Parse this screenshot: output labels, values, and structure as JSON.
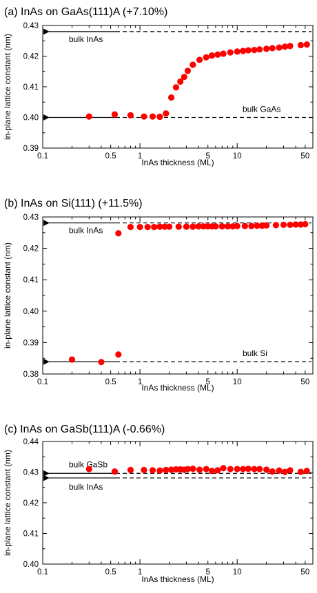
{
  "chart_data": [
    {
      "type": "scatter",
      "title": "(a) InAs on GaAs(111)A (+7.10%)",
      "xlabel": "InAs thickness (ML)",
      "ylabel": "in-plane lattice constant (nm)",
      "x_scale": "log",
      "xlim": [
        0.1,
        60
      ],
      "ylim": [
        0.39,
        0.43
      ],
      "xticks": [
        "0.1",
        "0.5",
        "1",
        "5",
        "10",
        "50"
      ],
      "yticks": [
        "0.39",
        "0.40",
        "0.41",
        "0.42",
        "0.43"
      ],
      "marker_color": "#ff0000",
      "series": [
        {
          "x": [
            0.3,
            0.55,
            0.8,
            1.1,
            1.35,
            1.6,
            1.85,
            2.1,
            2.35,
            2.6,
            2.85,
            3.1,
            3.5,
            4.1,
            4.8,
            5.5,
            6.3,
            7.2,
            8.5,
            10,
            11.5,
            13,
            15,
            17,
            20,
            23,
            27,
            31,
            35,
            45,
            52
          ],
          "y": [
            0.4003,
            0.401,
            0.4007,
            0.4003,
            0.4003,
            0.4002,
            0.4013,
            0.4065,
            0.4098,
            0.4117,
            0.4132,
            0.4152,
            0.4172,
            0.4188,
            0.4196,
            0.4202,
            0.4205,
            0.4208,
            0.4212,
            0.4215,
            0.4217,
            0.4219,
            0.422,
            0.4222,
            0.4224,
            0.4226,
            0.4228,
            0.4231,
            0.4233,
            0.4236,
            0.4238
          ]
        }
      ],
      "reference_lines": [
        {
          "label": "bulk InAs",
          "y": 0.428
        },
        {
          "label": "bulk GaAs",
          "y": 0.4
        }
      ],
      "grid": false
    },
    {
      "type": "scatter",
      "title": "(b) InAs on Si(111) (+11.5%)",
      "xlabel": "InAs thickness (ML)",
      "ylabel": "in-plane lattice constant (nm)",
      "x_scale": "log",
      "xlim": [
        0.1,
        60
      ],
      "ylim": [
        0.38,
        0.43
      ],
      "xticks": [
        "0.1",
        "0.5",
        "1",
        "5",
        "10",
        "50"
      ],
      "yticks": [
        "0.38",
        "0.39",
        "0.40",
        "0.41",
        "0.42",
        "0.43"
      ],
      "marker_color": "#ff0000",
      "series": [
        {
          "x": [
            0.2,
            0.4,
            0.6,
            0.6,
            0.8,
            1.0,
            1.2,
            1.4,
            1.6,
            1.8,
            2.0,
            2.5,
            3.0,
            3.5,
            4.0,
            4.5,
            5.0,
            5.5,
            6.0,
            7.0,
            8.0,
            9.0,
            10,
            12,
            14,
            16,
            18,
            20,
            25,
            30,
            35,
            40,
            45,
            50
          ],
          "y": [
            0.3846,
            0.3838,
            0.3862,
            0.4248,
            0.4268,
            0.4268,
            0.4268,
            0.4268,
            0.4269,
            0.4269,
            0.4269,
            0.4269,
            0.4269,
            0.4269,
            0.427,
            0.427,
            0.427,
            0.427,
            0.427,
            0.427,
            0.427,
            0.427,
            0.4271,
            0.4271,
            0.4271,
            0.4272,
            0.4272,
            0.4273,
            0.4274,
            0.4275,
            0.4275,
            0.4276,
            0.4276,
            0.4277
          ]
        }
      ],
      "reference_lines": [
        {
          "label": "bulk InAs",
          "y": 0.4281
        },
        {
          "label": "bulk Si",
          "y": 0.3839
        }
      ],
      "grid": false
    },
    {
      "type": "scatter",
      "title": "(c) InAs on GaSb(111)A (-0.66%)",
      "xlabel": "InAs thickness (ML)",
      "ylabel": "in-plane lattice constant (nm)",
      "x_scale": "log",
      "xlim": [
        0.1,
        60
      ],
      "ylim": [
        0.4,
        0.44
      ],
      "xticks": [
        "0.1",
        "0.5",
        "1",
        "5",
        "10",
        "50"
      ],
      "yticks": [
        "0.40",
        "0.41",
        "0.42",
        "0.43",
        "0.44"
      ],
      "marker_color": "#ff0000",
      "series": [
        {
          "x": [
            0.3,
            0.55,
            0.8,
            1.1,
            1.35,
            1.6,
            1.85,
            2.1,
            2.35,
            2.6,
            2.85,
            3.1,
            3.5,
            4.1,
            4.8,
            5.5,
            6.3,
            7.2,
            8.5,
            10,
            11.5,
            13,
            15,
            17,
            20,
            23,
            27,
            31,
            35,
            45,
            52
          ],
          "y": [
            0.431,
            0.4302,
            0.4307,
            0.4307,
            0.4306,
            0.4305,
            0.4307,
            0.4308,
            0.4309,
            0.4309,
            0.4308,
            0.431,
            0.4311,
            0.4308,
            0.431,
            0.4304,
            0.4306,
            0.4313,
            0.431,
            0.431,
            0.431,
            0.4311,
            0.431,
            0.431,
            0.4308,
            0.4302,
            0.4305,
            0.4301,
            0.4306,
            0.4301,
            0.4304
          ]
        }
      ],
      "reference_lines": [
        {
          "label": "bulk GaSb",
          "y": 0.4296
        },
        {
          "label": "bulk InAs",
          "y": 0.4281
        }
      ],
      "grid": false
    }
  ]
}
